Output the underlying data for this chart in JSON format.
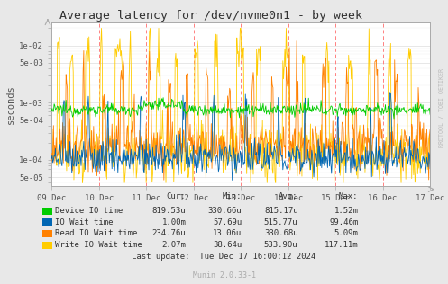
{
  "title": "Average latency for /dev/nvme0n1 - by week",
  "ylabel": "seconds",
  "watermark": "RRDTOOL / TOBI OETIKER",
  "munin_version": "Munin 2.0.33-1",
  "bg_color": "#e8e8e8",
  "plot_bg_color": "#ffffff",
  "vline_color": "#ff8080",
  "ylim_min": 3.5e-05,
  "ylim_max": 0.025,
  "xlim_start": 0,
  "xlim_end": 576,
  "x_tick_positions": [
    0,
    72,
    144,
    216,
    288,
    360,
    432,
    504,
    576
  ],
  "x_tick_labels": [
    "09 Dec",
    "10 Dec",
    "11 Dec",
    "12 Dec",
    "13 Dec",
    "14 Dec",
    "15 Dec",
    "16 Dec",
    "17 Dec"
  ],
  "vlines": [
    72,
    144,
    216,
    288,
    360,
    432,
    504
  ],
  "legend_entries": [
    {
      "label": "Device IO time",
      "color": "#00cc00"
    },
    {
      "label": "IO Wait time",
      "color": "#0066b3"
    },
    {
      "label": "Read IO Wait time",
      "color": "#ff8000"
    },
    {
      "label": "Write IO Wait time",
      "color": "#ffcc00"
    }
  ],
  "legend_stats": [
    {
      "cur": "819.53u",
      "min": "330.66u",
      "avg": "815.17u",
      "max": "1.52m"
    },
    {
      "cur": "1.00m",
      "min": "57.69u",
      "avg": "515.77u",
      "max": "99.46m"
    },
    {
      "cur": "234.76u",
      "min": "13.06u",
      "avg": "330.68u",
      "max": "5.09m"
    },
    {
      "cur": "2.07m",
      "min": "38.64u",
      "avg": "533.90u",
      "max": "117.11m"
    }
  ],
  "last_update": "Last update:  Tue Dec 17 16:00:12 2024",
  "yticks": [
    5e-05,
    0.0001,
    0.0005,
    0.001,
    0.005,
    0.01
  ],
  "ytick_labels": [
    "5e-05",
    "1e-04",
    "5e-04",
    "1e-03",
    "5e-03",
    "1e-02"
  ]
}
